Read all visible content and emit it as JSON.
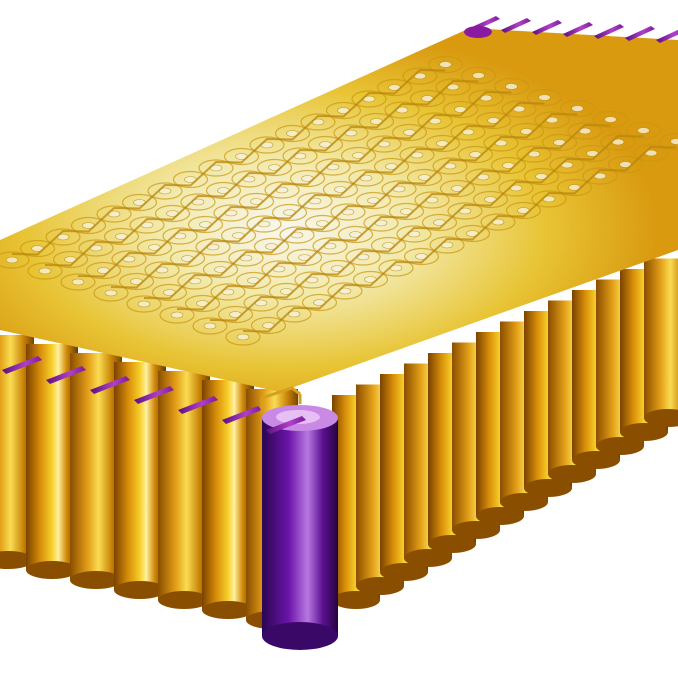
{
  "image": {
    "subject": "battery-pack",
    "colors": {
      "background": "#ffffff",
      "cell_dark": "#8a4e00",
      "cell_mid": "#d98f0a",
      "cell_light": "#f7cf2a",
      "cell_highlight": "#fff6b0",
      "top_hot": "#f3f0e6",
      "connector": "#c9950f",
      "terminal_tab": "#8a1aa0",
      "highlight_cell_dark": "#2a0650",
      "highlight_cell_mid": "#6a14a8",
      "highlight_cell_light": "#b878e0"
    },
    "grid": {
      "rows": 8,
      "columns": 18
    }
  }
}
